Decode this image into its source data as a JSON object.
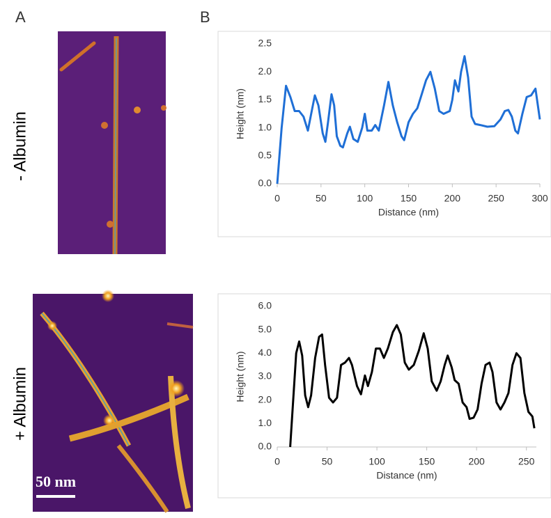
{
  "figure": {
    "panel_labels": [
      "A",
      "B"
    ],
    "row_labels": [
      "- Albumin",
      "+ Albumin"
    ],
    "scale_bar": "50 nm"
  },
  "chart_data": [
    {
      "type": "line",
      "xlabel": "Distance (nm)",
      "ylabel": "Height (nm)",
      "color": "#1f6fd6",
      "x": [
        0,
        5,
        10,
        15,
        20,
        25,
        30,
        35,
        40,
        43,
        47,
        52,
        55,
        58,
        62,
        65,
        68,
        72,
        75,
        80,
        83,
        87,
        92,
        97,
        100,
        103,
        108,
        112,
        116,
        122,
        127,
        132,
        137,
        142,
        145,
        150,
        155,
        160,
        165,
        170,
        175,
        180,
        185,
        190,
        197,
        200,
        203,
        207,
        210,
        214,
        218,
        222,
        226,
        232,
        240,
        248,
        255,
        260,
        264,
        268,
        272,
        275,
        280,
        285,
        290,
        295,
        300
      ],
      "values": [
        0,
        1.0,
        1.75,
        1.55,
        1.3,
        1.3,
        1.2,
        0.95,
        1.35,
        1.58,
        1.4,
        0.9,
        0.75,
        1.1,
        1.6,
        1.4,
        0.85,
        0.68,
        0.65,
        0.9,
        1.02,
        0.8,
        0.75,
        1.0,
        1.25,
        0.95,
        0.95,
        1.05,
        0.95,
        1.4,
        1.82,
        1.4,
        1.1,
        0.85,
        0.78,
        1.1,
        1.25,
        1.35,
        1.6,
        1.85,
        2.0,
        1.7,
        1.3,
        1.25,
        1.3,
        1.5,
        1.85,
        1.65,
        2.0,
        2.28,
        1.9,
        1.2,
        1.07,
        1.05,
        1.02,
        1.03,
        1.15,
        1.3,
        1.32,
        1.2,
        0.95,
        0.9,
        1.25,
        1.55,
        1.58,
        1.7,
        1.15
      ],
      "xlim": [
        0,
        300
      ],
      "xticks": [
        0,
        50,
        100,
        150,
        200,
        250,
        300
      ],
      "ylim": [
        0,
        2.5
      ],
      "yticks": [
        {
          "value": 0,
          "label": "0.0"
        },
        {
          "value": 0.5,
          "label": "0.5"
        },
        {
          "value": 1,
          "label": "1.0"
        },
        {
          "value": 1.5,
          "label": "1.5"
        },
        {
          "value": 2,
          "label": "2.0"
        },
        {
          "value": 2.5,
          "label": "2.5"
        }
      ]
    },
    {
      "type": "line",
      "xlabel": "Distance (nm)",
      "ylabel": "Height (nm)",
      "color": "#000000",
      "x": [
        13,
        16,
        19,
        22,
        25,
        28,
        31,
        34,
        38,
        42,
        45,
        48,
        52,
        56,
        60,
        64,
        68,
        72,
        75,
        80,
        84,
        88,
        91,
        95,
        99,
        103,
        107,
        111,
        116,
        120,
        124,
        128,
        132,
        137,
        142,
        147,
        151,
        155,
        160,
        164,
        168,
        171,
        175,
        178,
        182,
        186,
        190,
        193,
        197,
        201,
        205,
        209,
        213,
        216,
        220,
        224,
        228,
        232,
        236,
        240,
        244,
        248,
        252,
        256,
        258
      ],
      "values": [
        0,
        2.0,
        4.0,
        4.5,
        3.9,
        2.2,
        1.7,
        2.2,
        3.8,
        4.7,
        4.8,
        3.5,
        2.1,
        1.9,
        2.1,
        3.5,
        3.6,
        3.8,
        3.5,
        2.6,
        2.25,
        3.05,
        2.6,
        3.2,
        4.2,
        4.2,
        3.8,
        4.2,
        4.9,
        5.2,
        4.8,
        3.6,
        3.3,
        3.5,
        4.1,
        4.85,
        4.2,
        2.8,
        2.4,
        2.8,
        3.5,
        3.9,
        3.4,
        2.85,
        2.7,
        1.9,
        1.7,
        1.2,
        1.25,
        1.6,
        2.7,
        3.5,
        3.6,
        3.2,
        1.9,
        1.6,
        1.9,
        2.3,
        3.5,
        4.0,
        3.8,
        2.3,
        1.5,
        1.3,
        0.8
      ],
      "xlim": [
        0,
        260
      ],
      "xticks": [
        0,
        50,
        100,
        150,
        200,
        250
      ],
      "ylim": [
        0,
        6
      ],
      "yticks": [
        {
          "value": 0,
          "label": "0.0"
        },
        {
          "value": 1,
          "label": "1.0"
        },
        {
          "value": 2,
          "label": "2.0"
        },
        {
          "value": 3,
          "label": "3.0"
        },
        {
          "value": 4,
          "label": "4.0"
        },
        {
          "value": 5,
          "label": "5.0"
        },
        {
          "value": 6,
          "label": "6.0"
        }
      ]
    }
  ]
}
